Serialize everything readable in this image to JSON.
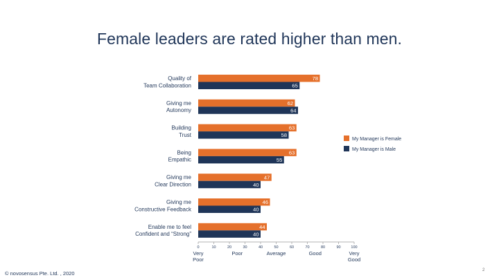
{
  "slide": {
    "title": "Female leaders are rated higher than men.",
    "copyright": "© novosensus Pte. Ltd. , 2020",
    "page_number": "2"
  },
  "chart_data": {
    "type": "bar",
    "orientation": "horizontal",
    "title": "",
    "categories": [
      [
        "Quality of",
        "Team Collaboration"
      ],
      [
        "Giving me",
        "Autonomy"
      ],
      [
        "Building",
        "Trust"
      ],
      [
        "Being",
        "Empathic"
      ],
      [
        "Giving me",
        "Clear Direction"
      ],
      [
        "Giving me",
        "Constructive Feedback"
      ],
      [
        "Enable me to feel",
        "Confident and “Strong”"
      ]
    ],
    "series": [
      {
        "name": "My Manager is Female",
        "color": "#e5702b",
        "values": [
          78,
          62,
          63,
          63,
          47,
          46,
          44
        ]
      },
      {
        "name": "My Manager is Male",
        "color": "#1f3558",
        "values": [
          65,
          64,
          58,
          55,
          40,
          40,
          40
        ]
      }
    ],
    "xlim": [
      0,
      100
    ],
    "xticks": [
      0,
      10,
      20,
      30,
      40,
      50,
      60,
      70,
      80,
      90,
      100
    ],
    "scale_labels": [
      {
        "x": 0,
        "lines": [
          "Very",
          "Poor"
        ]
      },
      {
        "x": 25,
        "lines": [
          "Poor"
        ]
      },
      {
        "x": 50,
        "lines": [
          "Average"
        ]
      },
      {
        "x": 75,
        "lines": [
          "Good"
        ]
      },
      {
        "x": 100,
        "lines": [
          "Very",
          "Good"
        ]
      }
    ],
    "data_labels": true,
    "grid": false,
    "legend_position": "right"
  }
}
